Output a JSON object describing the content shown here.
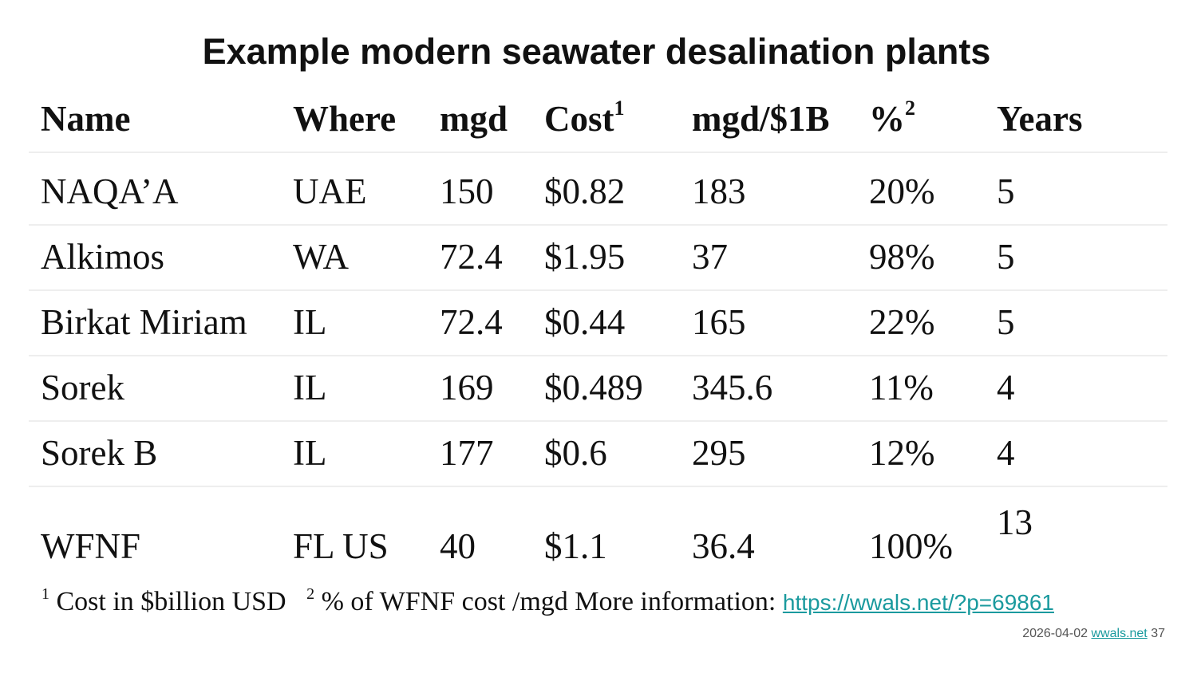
{
  "title": "Example modern seawater desalination plants",
  "table": {
    "headers": [
      {
        "label": "Name",
        "sup": ""
      },
      {
        "label": "Where",
        "sup": ""
      },
      {
        "label": "mgd",
        "sup": ""
      },
      {
        "label": "Cost",
        "sup": "1"
      },
      {
        "label": "mgd/$1B",
        "sup": ""
      },
      {
        "label": "%",
        "sup": "2"
      },
      {
        "label": "Years",
        "sup": ""
      }
    ],
    "rows": [
      [
        "NAQA’A",
        "UAE",
        "150",
        "$0.82",
        "183",
        "20%",
        "5"
      ],
      [
        "Alkimos",
        "WA",
        "72.4",
        "$1.95",
        "37",
        "98%",
        "5"
      ],
      [
        "Birkat Miriam",
        "IL",
        "72.4",
        "$0.44",
        "165",
        "22%",
        "5"
      ],
      [
        "Sorek",
        "IL",
        "169",
        "$0.489",
        "345.6",
        "11%",
        "4"
      ],
      [
        "Sorek B",
        "IL",
        "177",
        "$0.6",
        "295",
        "12%",
        "4"
      ],
      [
        "WFNF",
        "FL US",
        "40",
        "$1.1",
        "36.4",
        "100%",
        "13"
      ]
    ]
  },
  "footnote": {
    "sup1": "1",
    "note1": "Cost in $billion USD",
    "sup2": "2",
    "note2": "% of WFNF cost /mgd More information:",
    "link": "https://wwals.net/?p=69861"
  },
  "slide_info": {
    "date": "2026-04-02",
    "site": "wwals.net",
    "page": "37"
  }
}
